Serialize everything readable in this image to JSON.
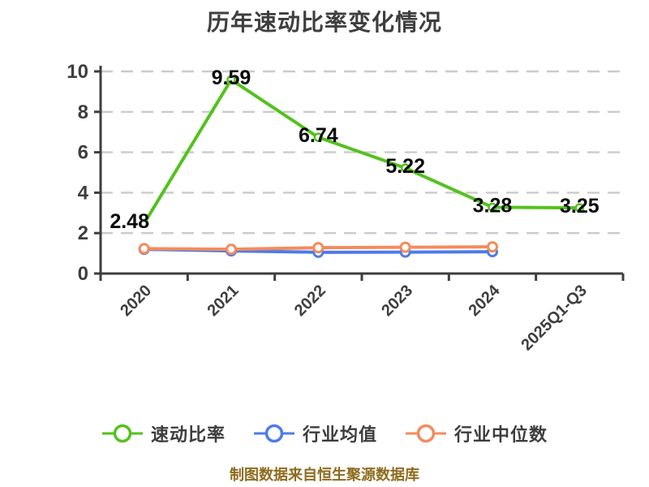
{
  "page": {
    "background": "#ffffff"
  },
  "chart_data": {
    "type": "line",
    "title": "历年速动比率变化情况",
    "categories": [
      "2020",
      "2021",
      "2022",
      "2023",
      "2024",
      "2025Q1-Q3"
    ],
    "series": [
      {
        "name": "速动比率",
        "color": "#53c21d",
        "values": [
          2.48,
          9.59,
          6.74,
          5.22,
          3.28,
          3.25
        ],
        "labels_shown": true,
        "data_labels": [
          "2.48",
          "9.59",
          "6.74",
          "5.22",
          "3.28",
          "3.25"
        ]
      },
      {
        "name": "行业均值",
        "color": "#4d7ce9",
        "values": [
          1.2,
          1.12,
          1.05,
          1.06,
          1.08,
          null
        ],
        "labels_shown": false
      },
      {
        "name": "行业中位数",
        "color": "#f48b5c",
        "values": [
          1.23,
          1.2,
          1.28,
          1.3,
          1.32,
          null
        ],
        "labels_shown": false
      }
    ],
    "ylim": [
      0,
      10
    ],
    "yticks": [
      0,
      2,
      4,
      6,
      8,
      10
    ],
    "grid": "horizontal-dashed",
    "legend_position": "bottom",
    "x_label_rotation": -45
  },
  "style_colors": {
    "axis": "#3e3e3e",
    "gridline": "#cbcbcb",
    "tick_label": "#3e3e3e",
    "data_label": "#0a0a0a"
  },
  "footer": {
    "text": "制图数据来自恒生聚源数据库",
    "color": "#8e6b1d"
  }
}
